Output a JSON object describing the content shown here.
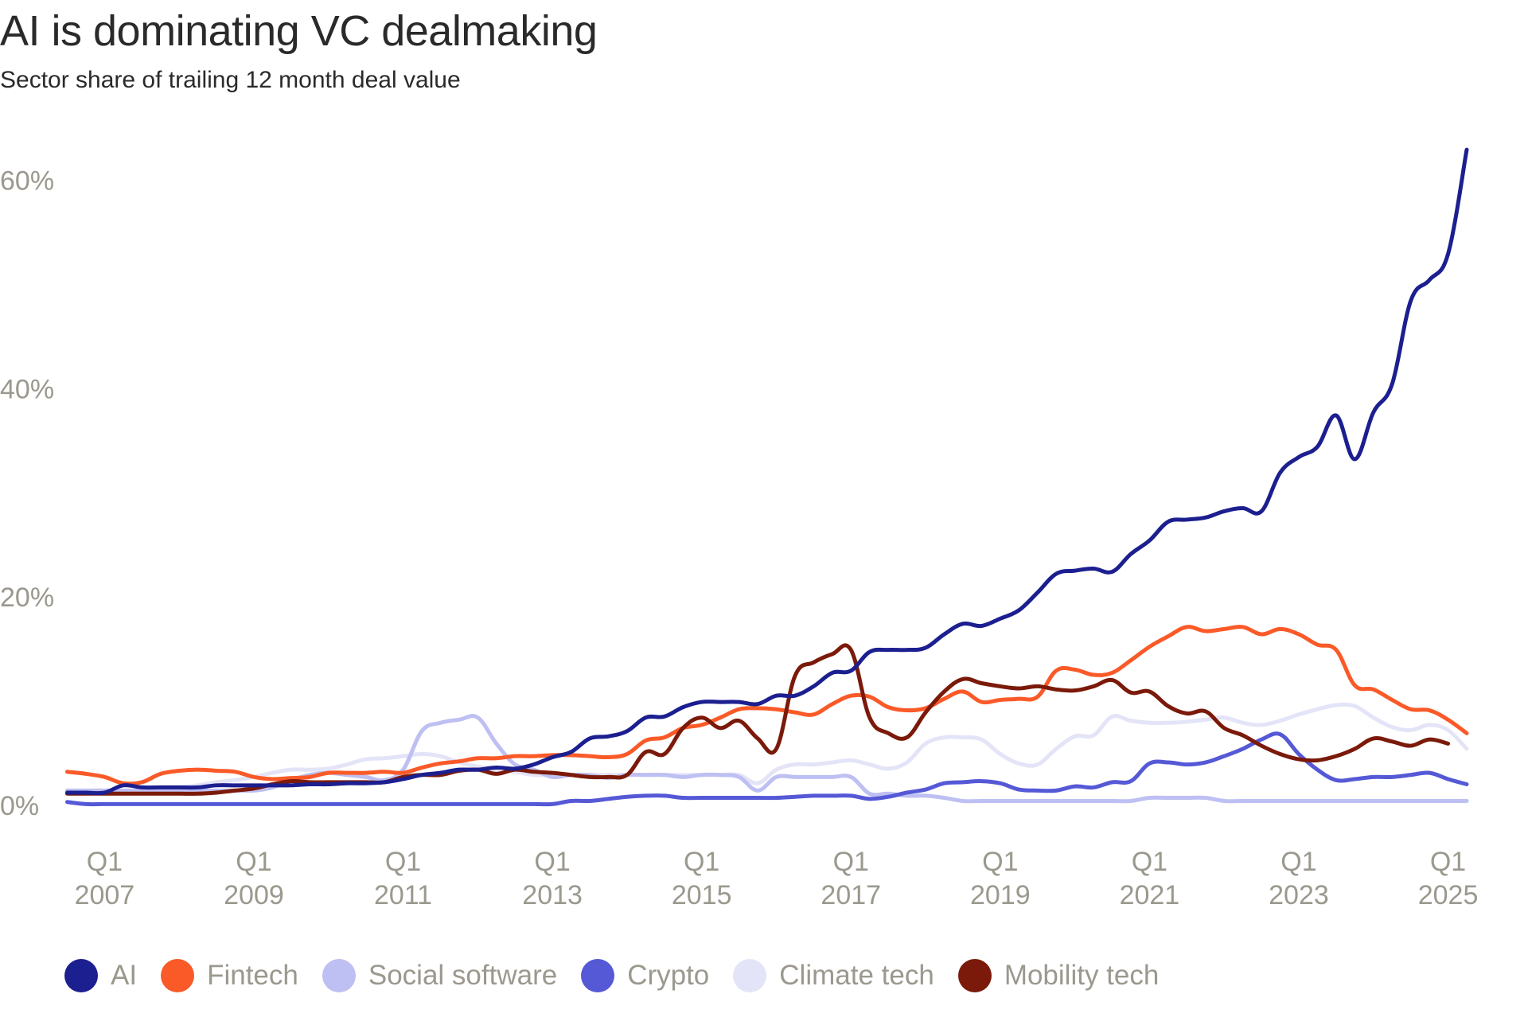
{
  "chart_data": {
    "type": "line",
    "title": "AI is dominating VC dealmaking",
    "subtitle": "Sector share of trailing 12 month deal value",
    "categories": [
      null,
      null,
      "Q1 2007",
      null,
      null,
      null,
      null,
      null,
      null,
      null,
      "Q1 2009",
      null,
      null,
      null,
      null,
      null,
      null,
      null,
      "Q1 2011",
      null,
      null,
      null,
      null,
      null,
      null,
      null,
      "Q1 2013",
      null,
      null,
      null,
      null,
      null,
      null,
      null,
      "Q1 2015",
      null,
      null,
      null,
      null,
      null,
      null,
      null,
      "Q1 2017",
      null,
      null,
      null,
      null,
      null,
      null,
      null,
      "Q1 2019",
      null,
      null,
      null,
      null,
      null,
      null,
      null,
      "Q1 2021",
      null,
      null,
      null,
      null,
      null,
      null,
      null,
      "Q1 2023",
      null,
      null,
      null,
      null,
      null,
      null,
      null,
      "Q1 2025",
      null
    ],
    "ylim": [
      0,
      60
    ],
    "yticks": [
      {
        "value": 0,
        "label": "0%"
      },
      {
        "value": 20,
        "label": "20%"
      },
      {
        "value": 40,
        "label": "40%"
      },
      {
        "value": 60,
        "label": "60%"
      }
    ],
    "grid": false,
    "series": [
      {
        "name": "AI",
        "color": "#1c1f8f",
        "values": [
          1.3,
          1.3,
          1.3,
          2,
          1.8,
          1.8,
          1.8,
          1.8,
          2,
          2,
          2,
          2,
          2,
          2.1,
          2.1,
          2.2,
          2.2,
          2.3,
          2.6,
          3,
          3.2,
          3.5,
          3.5,
          3.7,
          3.6,
          4,
          4.7,
          5.2,
          6.5,
          6.7,
          7.2,
          8.5,
          8.6,
          9.5,
          10,
          10,
          10,
          9.8,
          10.6,
          10.6,
          11.5,
          12.8,
          13,
          14.8,
          15,
          15,
          15.2,
          16.5,
          17.5,
          17.3,
          18,
          18.8,
          20.5,
          22.3,
          22.6,
          22.8,
          22.5,
          24.2,
          25.5,
          27.3,
          27.5,
          27.7,
          28.3,
          28.6,
          28.3,
          32,
          33.5,
          34.5,
          37.5,
          33.3,
          37.8,
          40.5,
          48.5,
          50.5,
          53,
          63
        ]
      },
      {
        "name": "Fintech",
        "color": "#fa5a28",
        "values": [
          3.3,
          3.1,
          2.8,
          2.2,
          2.3,
          3.1,
          3.4,
          3.5,
          3.4,
          3.3,
          2.8,
          2.6,
          2.7,
          2.8,
          3.2,
          3.2,
          3.2,
          3.3,
          3.2,
          3.7,
          4.1,
          4.3,
          4.6,
          4.6,
          4.8,
          4.8,
          4.9,
          4.9,
          4.8,
          4.7,
          5,
          6.3,
          6.6,
          7.5,
          7.8,
          8.5,
          9.3,
          9.4,
          9.3,
          9,
          8.8,
          9.8,
          10.6,
          10.5,
          9.5,
          9.2,
          9.4,
          10.3,
          11,
          10,
          10.2,
          10.3,
          10.5,
          13,
          13.1,
          12.6,
          12.8,
          14,
          15.3,
          16.3,
          17.2,
          16.8,
          17,
          17.2,
          16.5,
          17,
          16.5,
          15.5,
          15,
          11.6,
          11.2,
          10.2,
          9.3,
          9.2,
          8.3,
          7
        ]
      },
      {
        "name": "Social software",
        "color": "#bebff2",
        "values": [
          1.5,
          1.5,
          1.5,
          1.5,
          1.5,
          1.5,
          1.5,
          1.5,
          1.5,
          1.5,
          1.5,
          1.8,
          2.5,
          3,
          3.2,
          3,
          2.8,
          2.5,
          3.5,
          7.2,
          8,
          8.3,
          8.5,
          6,
          4,
          3.5,
          2.8,
          3,
          3,
          2.7,
          3,
          3,
          3,
          2.8,
          3,
          3,
          2.8,
          1.5,
          2.8,
          2.8,
          2.8,
          2.8,
          2.8,
          1.2,
          1.2,
          1,
          1,
          0.8,
          0.5,
          0.5,
          0.5,
          0.5,
          0.5,
          0.5,
          0.5,
          0.5,
          0.5,
          0.5,
          0.8,
          0.8,
          0.8,
          0.8,
          0.5,
          0.5,
          0.5,
          0.5,
          0.5,
          0.5,
          0.5,
          0.5,
          0.5,
          0.5,
          0.5,
          0.5,
          0.5,
          0.5
        ]
      },
      {
        "name": "Crypto",
        "color": "#5559d6",
        "values": [
          0.4,
          0.2,
          0.2,
          0.2,
          0.2,
          0.2,
          0.2,
          0.2,
          0.2,
          0.2,
          0.2,
          0.2,
          0.2,
          0.2,
          0.2,
          0.2,
          0.2,
          0.2,
          0.2,
          0.2,
          0.2,
          0.2,
          0.2,
          0.2,
          0.2,
          0.2,
          0.2,
          0.5,
          0.5,
          0.7,
          0.9,
          1,
          1,
          0.8,
          0.8,
          0.8,
          0.8,
          0.8,
          0.8,
          0.9,
          1,
          1,
          1,
          0.7,
          0.9,
          1.3,
          1.6,
          2.2,
          2.3,
          2.4,
          2.2,
          1.6,
          1.5,
          1.5,
          1.9,
          1.8,
          2.3,
          2.4,
          4.1,
          4.2,
          4,
          4.2,
          4.8,
          5.5,
          6.4,
          6.9,
          5,
          3.5,
          2.5,
          2.6,
          2.8,
          2.8,
          3,
          3.2,
          2.6,
          2.1
        ]
      },
      {
        "name": "Climate tech",
        "color": "#e4e4f8",
        "values": [
          1.5,
          1.5,
          1.5,
          1.5,
          1.5,
          1.5,
          1.8,
          2,
          2.3,
          2.5,
          2.8,
          3.2,
          3.5,
          3.5,
          3.6,
          4,
          4.5,
          4.6,
          4.8,
          5,
          4.8,
          4.2,
          3.8,
          3.5,
          3.3,
          3,
          3,
          3,
          3,
          3,
          3,
          3,
          3,
          3,
          3,
          3,
          3,
          2.2,
          3.5,
          4,
          4,
          4.2,
          4.4,
          4,
          3.6,
          4.2,
          6,
          6.6,
          6.6,
          6.4,
          5,
          4.1,
          4,
          5.5,
          6.7,
          6.8,
          8.6,
          8.2,
          8,
          8,
          8.1,
          8.3,
          8.5,
          8,
          7.8,
          8.2,
          8.8,
          9.3,
          9.7,
          9.6,
          8.5,
          7.6,
          7.3,
          7.8,
          7.3,
          5.5
        ]
      },
      {
        "name": "Mobility tech",
        "color": "#7b1a0a",
        "values": [
          1.2,
          1.2,
          1.2,
          1.2,
          1.2,
          1.2,
          1.2,
          1.2,
          1.3,
          1.5,
          1.7,
          2.1,
          2.4,
          2.3,
          2.3,
          2.3,
          2.3,
          2.3,
          2.8,
          3,
          3,
          3.4,
          3.5,
          3.1,
          3.5,
          3.3,
          3.2,
          3,
          2.8,
          2.8,
          3,
          5.2,
          5,
          7.5,
          8.5,
          7.5,
          8.2,
          6.5,
          5.5,
          12.5,
          13.8,
          14.6,
          15,
          8.5,
          7,
          6.6,
          9,
          11,
          12.2,
          11.8,
          11.5,
          11.3,
          11.5,
          11.2,
          11.1,
          11.5,
          12.1,
          10.9,
          11,
          9.6,
          8.9,
          9.1,
          7.5,
          6.8,
          5.8,
          5,
          4.5,
          4.4,
          4.8,
          5.5,
          6.5,
          6.2,
          5.8,
          6.4,
          6,
          null
        ]
      }
    ]
  }
}
